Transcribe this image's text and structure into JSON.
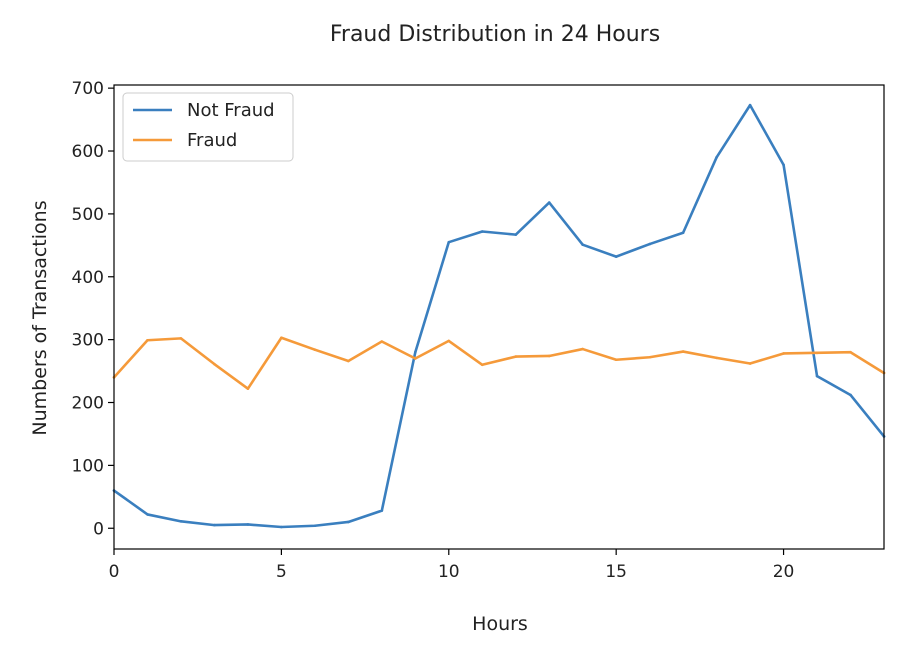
{
  "chart_data": {
    "type": "line",
    "title": "Fraud Distribution in 24 Hours",
    "xlabel": "Hours",
    "ylabel": "Numbers of Transactions",
    "xlim": [
      0,
      23
    ],
    "ylim": [
      -33,
      705
    ],
    "xticks": [
      0,
      5,
      10,
      15,
      20
    ],
    "yticks": [
      0,
      100,
      200,
      300,
      400,
      500,
      600,
      700
    ],
    "grid": false,
    "legend_position": "upper left",
    "x": [
      0,
      1,
      2,
      3,
      4,
      5,
      6,
      7,
      8,
      9,
      10,
      11,
      12,
      13,
      14,
      15,
      16,
      17,
      18,
      19,
      20,
      21,
      22,
      23
    ],
    "series": [
      {
        "name": "Not Fraud",
        "color": "#3a7fbf",
        "values": [
          60,
          22,
          11,
          5,
          6,
          2,
          4,
          10,
          28,
          280,
          455,
          472,
          467,
          518,
          451,
          432,
          452,
          470,
          590,
          673,
          578,
          242,
          212,
          146
        ]
      },
      {
        "name": "Fraud",
        "color": "#f59a3a",
        "values": [
          240,
          299,
          302,
          261,
          222,
          303,
          284,
          266,
          297,
          270,
          298,
          260,
          273,
          274,
          285,
          268,
          272,
          281,
          271,
          262,
          278,
          279,
          280,
          247
        ]
      }
    ]
  }
}
